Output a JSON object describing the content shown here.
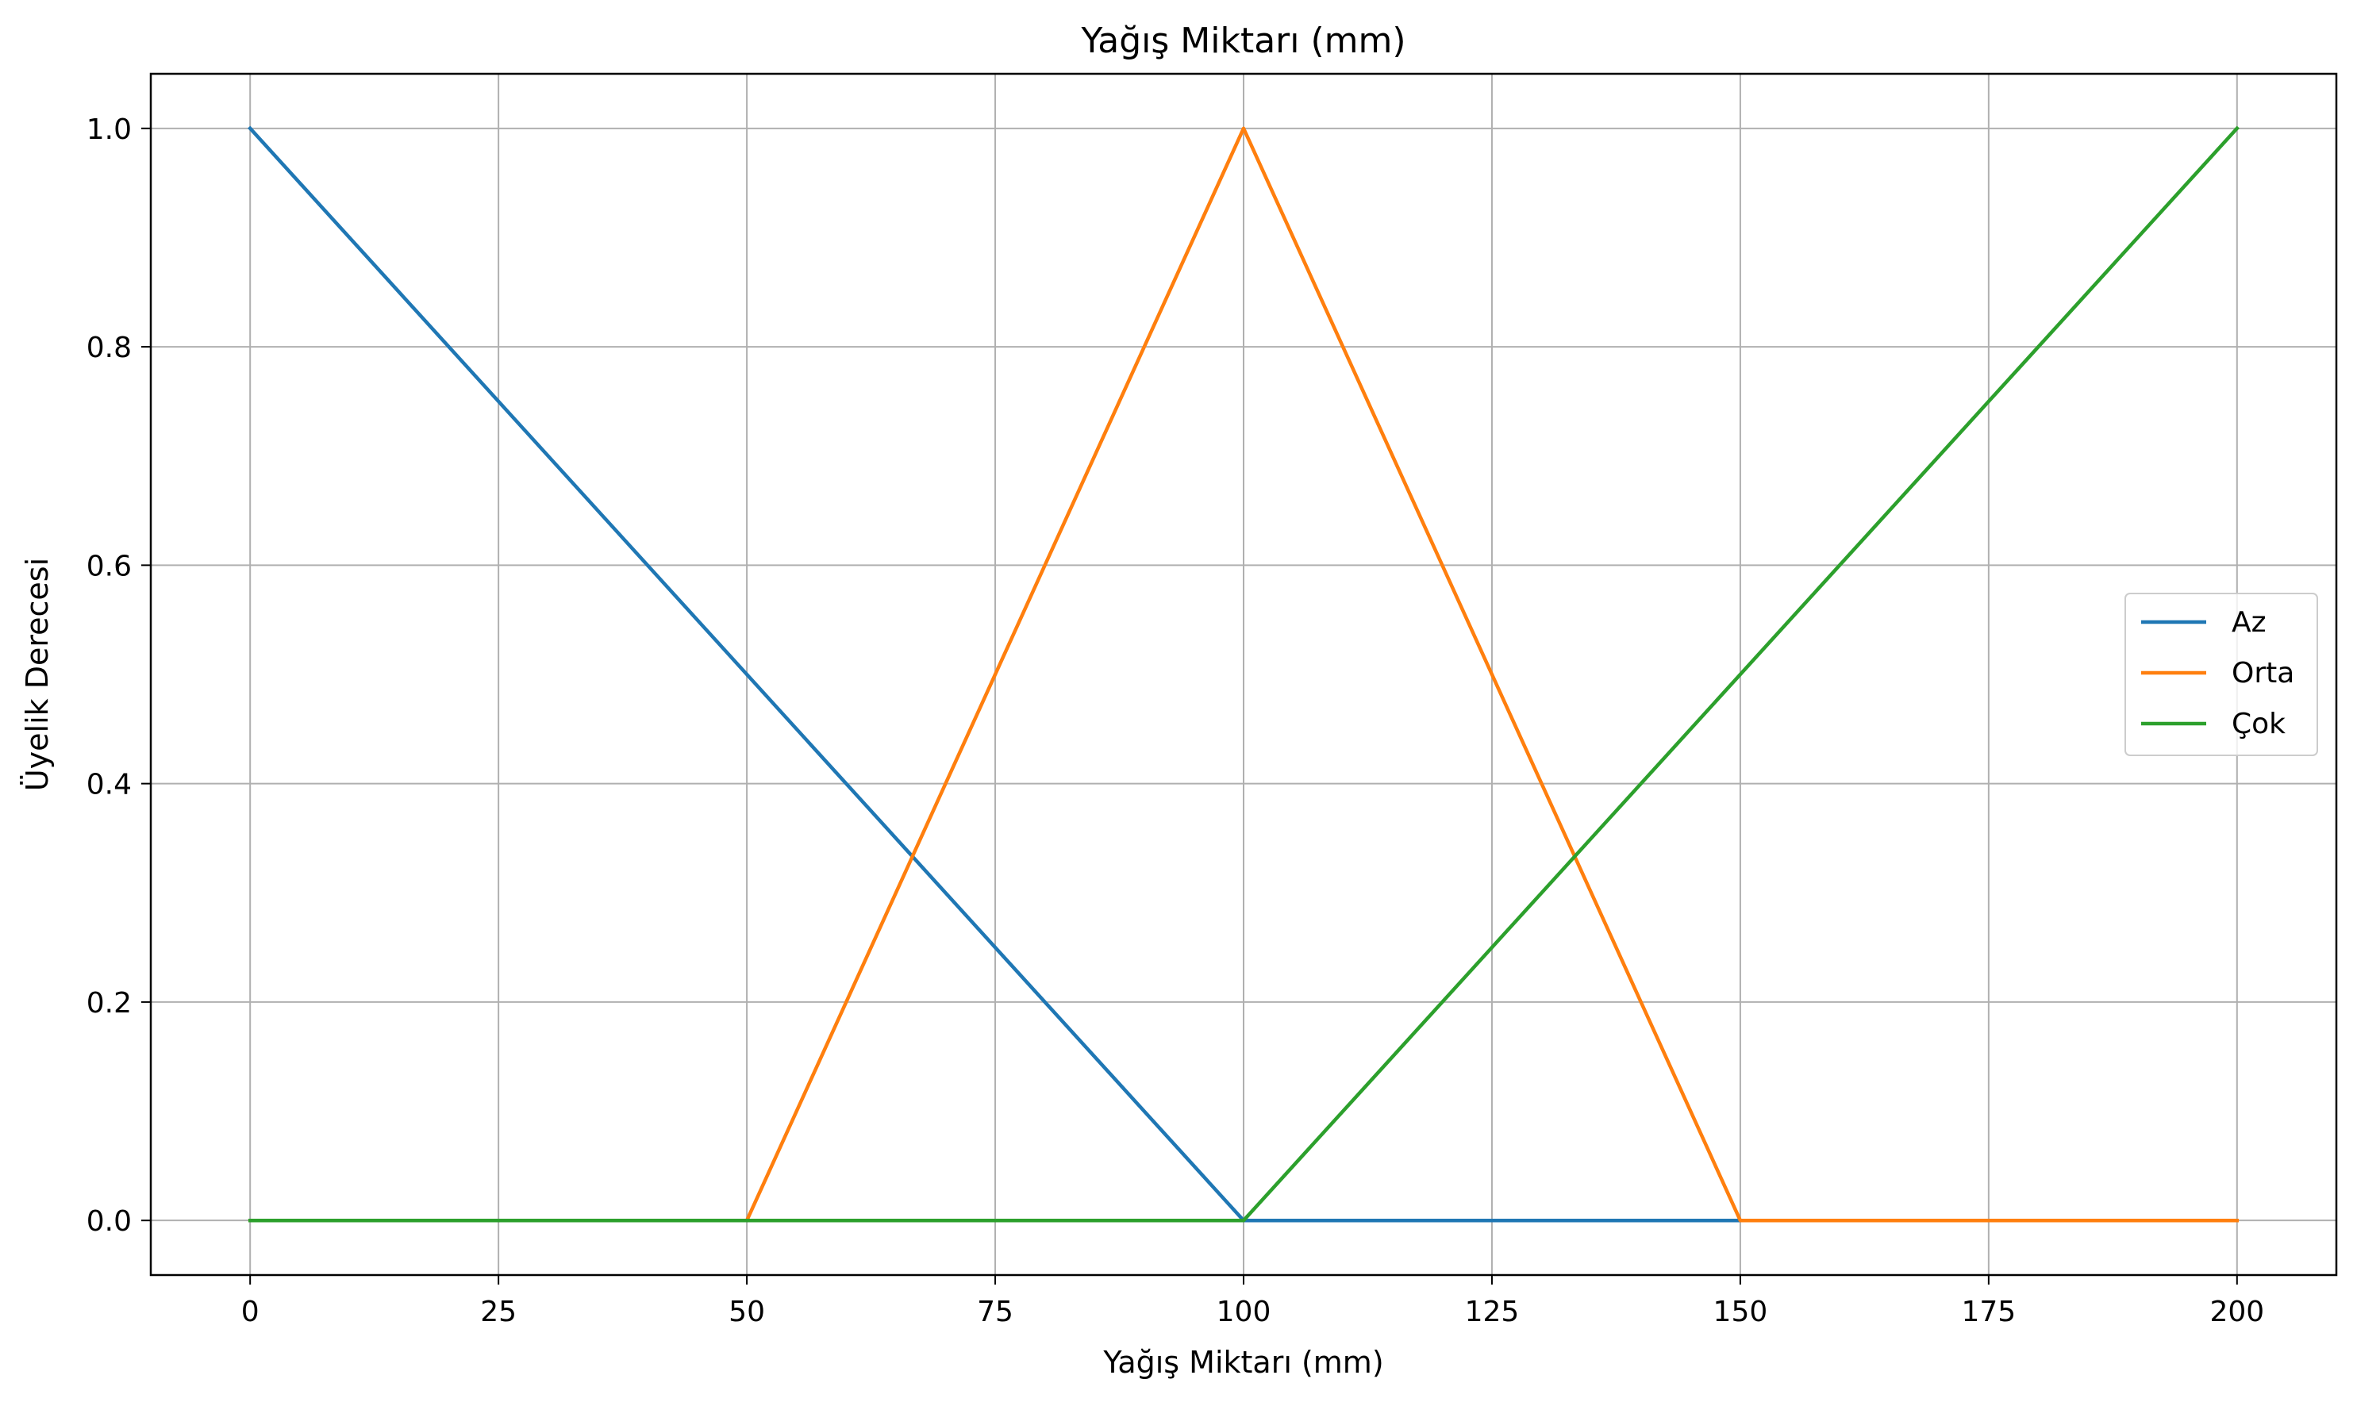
{
  "chart_data": {
    "type": "line",
    "title": "Yağış Miktarı (mm)",
    "xlabel": "Yağış Miktarı (mm)",
    "ylabel": "Üyelik Derecesi",
    "xlim": [
      -10,
      210
    ],
    "ylim": [
      -0.05,
      1.05
    ],
    "x_ticks": [
      0,
      25,
      50,
      75,
      100,
      125,
      150,
      175,
      200
    ],
    "x_tick_labels": [
      "0",
      "25",
      "50",
      "75",
      "100",
      "125",
      "150",
      "175",
      "200"
    ],
    "y_ticks": [
      0.0,
      0.2,
      0.4,
      0.6,
      0.8,
      1.0
    ],
    "y_tick_labels": [
      "0.0",
      "0.2",
      "0.4",
      "0.6",
      "0.8",
      "1.0"
    ],
    "grid": true,
    "legend_position": "center-right",
    "series": [
      {
        "name": "Az",
        "color": "#1f77b4",
        "x": [
          0,
          100,
          150
        ],
        "y": [
          1.0,
          0.0,
          0.0
        ]
      },
      {
        "name": "Orta",
        "color": "#ff7f0e",
        "x": [
          0,
          50,
          100,
          150,
          200
        ],
        "y": [
          0.0,
          0.0,
          1.0,
          0.0,
          0.0
        ]
      },
      {
        "name": "Çok",
        "color": "#2ca02c",
        "x": [
          0,
          100,
          200
        ],
        "y": [
          0.0,
          0.0,
          1.0
        ]
      }
    ]
  }
}
